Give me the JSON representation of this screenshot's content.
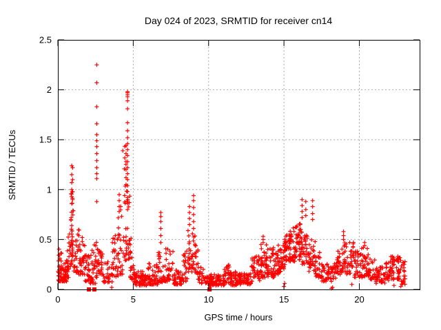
{
  "chart_data": {
    "type": "scatter",
    "title": "Day 024 of 2023, SRMTID for receiver cn14",
    "xlabel": "GPS time / hours",
    "ylabel": "SRMTID / TECUs",
    "xlim": [
      0,
      24
    ],
    "ylim": [
      0,
      2.5
    ],
    "xticks": [
      0,
      5,
      10,
      15,
      20
    ],
    "xtick_labels": [
      "0",
      "5",
      "10",
      "15",
      "20"
    ],
    "yticks": [
      0,
      0.5,
      1,
      1.5,
      2,
      2.5
    ],
    "ytick_labels": [
      "0",
      "0.5",
      "1",
      "1.5",
      "2",
      "2.5"
    ],
    "grid": true,
    "legend": "none",
    "series_name": "SRMTID",
    "marker": "plus",
    "marker_color": "#ff0000",
    "grid_color": "#a8a8a8",
    "border_color": "#000000",
    "background_color": "#ffffff",
    "spike_columns_format": "x in hours, ys = individually visible point values (TECUs)",
    "spike_columns": [
      {
        "x": 0.92,
        "ys": [
          1.24,
          1.15,
          1.07,
          1.0,
          0.93,
          0.86
        ]
      },
      {
        "x": 0.98,
        "ys": [
          1.22,
          1.1,
          0.98,
          0.9
        ]
      },
      {
        "x": 1.62,
        "ys": [
          0.52,
          0.48
        ]
      },
      {
        "x": 2.58,
        "ys": [
          2.25,
          2.07,
          1.83,
          1.66,
          1.55,
          1.49,
          1.43,
          1.36,
          1.29,
          1.22,
          1.16,
          1.11,
          0.88
        ]
      },
      {
        "x": 4.07,
        "ys": [
          0.95,
          0.89,
          0.83,
          0.78
        ]
      },
      {
        "x": 4.52,
        "ys": [
          1.44,
          1.36,
          1.28,
          1.2,
          1.12,
          1.05
        ]
      },
      {
        "x": 4.62,
        "ys": [
          1.98,
          1.97,
          1.95,
          1.93,
          1.89,
          1.81,
          1.67,
          1.59,
          1.52,
          1.46,
          1.4,
          1.34,
          1.28,
          1.22,
          1.16,
          1.1,
          1.04,
          0.98,
          0.92,
          0.86,
          0.8
        ]
      },
      {
        "x": 6.83,
        "ys": [
          0.77,
          0.73,
          0.68,
          0.61,
          0.54,
          0.47
        ]
      },
      {
        "x": 8.73,
        "ys": [
          0.83,
          0.77,
          0.71,
          0.65
        ]
      },
      {
        "x": 9.0,
        "ys": [
          0.94,
          0.89,
          0.82,
          0.75,
          0.68,
          0.61
        ]
      },
      {
        "x": 13.62,
        "ys": [
          0.53,
          0.5,
          0.47
        ]
      },
      {
        "x": 16.2,
        "ys": [
          0.9,
          0.84,
          0.78,
          0.72
        ]
      },
      {
        "x": 16.45,
        "ys": [
          0.88,
          0.8,
          0.74
        ]
      },
      {
        "x": 16.9,
        "ys": [
          0.89,
          0.83,
          0.76,
          0.7
        ]
      },
      {
        "x": 18.95,
        "ys": [
          0.58,
          0.54,
          0.5
        ]
      },
      {
        "x": 20.35,
        "ys": [
          0.47,
          0.44
        ]
      },
      {
        "x": 22.2,
        "ys": [
          0.33,
          0.3
        ]
      },
      {
        "x": 22.55,
        "ys": [
          0.33,
          0.3
        ]
      }
    ],
    "zero_points_format": "points plotted at exactly 0 TECUs (render as small filled squares)",
    "zero_points": [
      [
        2.06,
        0
      ],
      [
        2.42,
        0
      ],
      [
        10.06,
        0
      ]
    ],
    "low_points": [
      [
        3.57,
        0.02
      ],
      [
        15.0,
        0.03
      ],
      [
        15.05,
        0.06
      ],
      [
        18.15,
        0.01
      ],
      [
        18.22,
        0.02
      ],
      [
        19.5,
        0.05
      ],
      [
        22.3,
        0.04
      ],
      [
        22.75,
        0.03
      ]
    ],
    "noise_bins_format": "[x_start_h, x_end_h, n_points, y_min, y_max, skew] - dense scatter envelope",
    "noise_bins": [
      [
        0.02,
        0.3,
        40,
        0.08,
        0.42,
        1.6
      ],
      [
        0.3,
        0.6,
        34,
        0.08,
        0.3,
        1.8
      ],
      [
        0.6,
        0.85,
        24,
        0.12,
        0.6,
        2.0
      ],
      [
        0.85,
        1.05,
        36,
        0.25,
        1.0,
        1.6
      ],
      [
        1.05,
        1.45,
        28,
        0.15,
        0.6,
        2.0
      ],
      [
        1.45,
        1.8,
        30,
        0.15,
        0.5,
        1.8
      ],
      [
        1.8,
        2.1,
        26,
        0.08,
        0.35,
        1.8
      ],
      [
        2.1,
        2.5,
        28,
        0.06,
        0.45,
        2.0
      ],
      [
        2.5,
        2.62,
        10,
        0.12,
        0.6,
        2.0
      ],
      [
        2.62,
        3.0,
        26,
        0.15,
        0.42,
        1.6
      ],
      [
        3.0,
        3.6,
        26,
        0.07,
        0.28,
        1.6
      ],
      [
        3.6,
        4.0,
        26,
        0.12,
        0.55,
        1.7
      ],
      [
        4.0,
        4.3,
        22,
        0.15,
        0.85,
        1.6
      ],
      [
        4.3,
        4.6,
        26,
        0.25,
        1.45,
        1.4
      ],
      [
        4.6,
        4.8,
        18,
        0.3,
        0.95,
        1.5
      ],
      [
        4.8,
        5.05,
        18,
        0.1,
        0.55,
        2.0
      ],
      [
        5.05,
        5.65,
        48,
        0.04,
        0.18,
        1.5
      ],
      [
        5.65,
        5.95,
        22,
        0.04,
        0.15,
        1.5
      ],
      [
        5.95,
        6.35,
        30,
        0.05,
        0.3,
        1.8
      ],
      [
        6.35,
        6.65,
        22,
        0.05,
        0.25,
        1.6
      ],
      [
        6.65,
        7.05,
        26,
        0.07,
        0.45,
        1.8
      ],
      [
        7.05,
        7.65,
        38,
        0.08,
        0.42,
        1.7
      ],
      [
        7.65,
        8.25,
        42,
        0.05,
        0.2,
        1.6
      ],
      [
        8.25,
        8.6,
        24,
        0.08,
        0.4,
        1.6
      ],
      [
        8.6,
        8.95,
        26,
        0.15,
        0.6,
        1.3
      ],
      [
        8.95,
        9.3,
        26,
        0.15,
        0.55,
        1.4
      ],
      [
        9.3,
        9.65,
        18,
        0.06,
        0.25,
        1.6
      ],
      [
        9.65,
        11.05,
        95,
        0.04,
        0.15,
        1.5
      ],
      [
        11.05,
        11.45,
        26,
        0.06,
        0.26,
        1.6
      ],
      [
        11.45,
        12.05,
        40,
        0.04,
        0.18,
        1.5
      ],
      [
        12.05,
        12.85,
        52,
        0.05,
        0.16,
        1.5
      ],
      [
        12.85,
        13.45,
        40,
        0.08,
        0.35,
        1.5
      ],
      [
        13.45,
        13.85,
        36,
        0.12,
        0.45,
        1.4
      ],
      [
        13.85,
        14.35,
        38,
        0.12,
        0.42,
        1.4
      ],
      [
        14.35,
        14.75,
        34,
        0.15,
        0.45,
        1.4
      ],
      [
        14.75,
        15.0,
        20,
        0.18,
        0.45,
        1.3
      ],
      [
        15.0,
        15.35,
        36,
        0.25,
        0.55,
        1.2
      ],
      [
        15.35,
        15.75,
        40,
        0.28,
        0.65,
        1.2
      ],
      [
        15.75,
        16.15,
        40,
        0.28,
        0.66,
        1.2
      ],
      [
        16.15,
        16.65,
        34,
        0.25,
        0.62,
        1.3
      ],
      [
        16.65,
        17.1,
        30,
        0.18,
        0.55,
        1.4
      ],
      [
        17.1,
        17.5,
        26,
        0.12,
        0.4,
        1.6
      ],
      [
        17.5,
        18.15,
        40,
        0.08,
        0.26,
        1.6
      ],
      [
        18.15,
        18.45,
        18,
        0.1,
        0.28,
        1.5
      ],
      [
        18.45,
        18.85,
        26,
        0.15,
        0.42,
        1.4
      ],
      [
        18.85,
        19.15,
        22,
        0.18,
        0.48,
        1.3
      ],
      [
        19.15,
        19.65,
        30,
        0.15,
        0.5,
        1.5
      ],
      [
        19.65,
        20.15,
        30,
        0.12,
        0.4,
        1.5
      ],
      [
        20.15,
        20.55,
        28,
        0.12,
        0.42,
        1.4
      ],
      [
        20.55,
        21.05,
        30,
        0.1,
        0.35,
        1.5
      ],
      [
        21.05,
        21.75,
        44,
        0.06,
        0.25,
        1.5
      ],
      [
        21.75,
        22.05,
        22,
        0.08,
        0.28,
        1.5
      ],
      [
        22.05,
        22.4,
        24,
        0.1,
        0.33,
        1.4
      ],
      [
        22.4,
        22.75,
        24,
        0.1,
        0.33,
        1.4
      ],
      [
        22.75,
        23.05,
        22,
        0.05,
        0.28,
        1.4
      ]
    ],
    "seed": 20230124
  }
}
